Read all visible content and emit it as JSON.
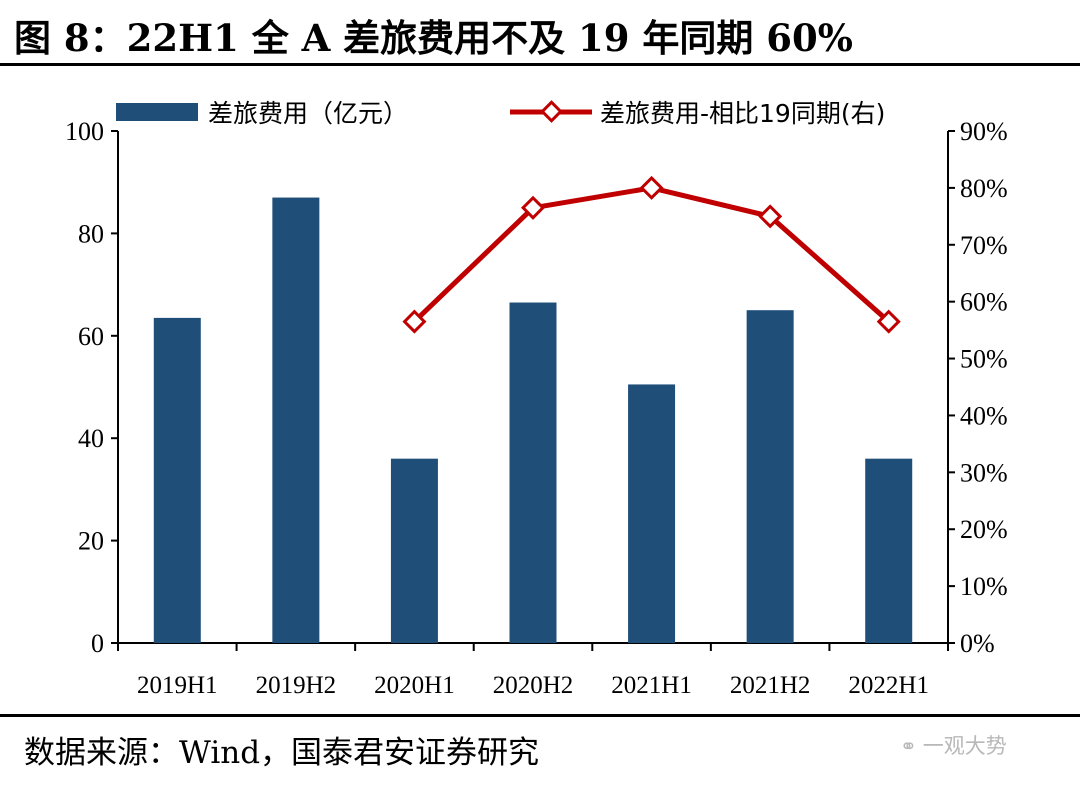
{
  "title": "图 8：22H1 全 A 差旅费用不及 19 年同期 60%",
  "source": "数据来源：Wind，国泰君安证券研究",
  "watermark": "一观大势",
  "watermark_icon": "wechat-icon",
  "colors": {
    "bar": "#1f4e79",
    "line": "#c00000",
    "axis": "#000000"
  },
  "chart_data": {
    "type": "bar+line",
    "categories": [
      "2019H1",
      "2019H2",
      "2020H1",
      "2020H2",
      "2021H1",
      "2021H2",
      "2022H1"
    ],
    "series": [
      {
        "name": "差旅费用（亿元）",
        "type": "bar",
        "axis": "left",
        "values": [
          63.5,
          87,
          36,
          66.5,
          50.5,
          65,
          36
        ]
      },
      {
        "name": "差旅费用-相比19同期(右)",
        "type": "line",
        "axis": "right",
        "values": [
          null,
          null,
          0.565,
          0.765,
          0.8,
          0.75,
          0.565
        ]
      }
    ],
    "y_left": {
      "min": 0,
      "max": 100,
      "ticks": [
        "0",
        "20",
        "40",
        "60",
        "80",
        "100"
      ]
    },
    "y_right": {
      "min": 0,
      "max": 0.9,
      "ticks": [
        "0%",
        "10%",
        "20%",
        "30%",
        "40%",
        "50%",
        "60%",
        "70%",
        "80%",
        "90%"
      ]
    },
    "legend": "top",
    "grid": false
  }
}
